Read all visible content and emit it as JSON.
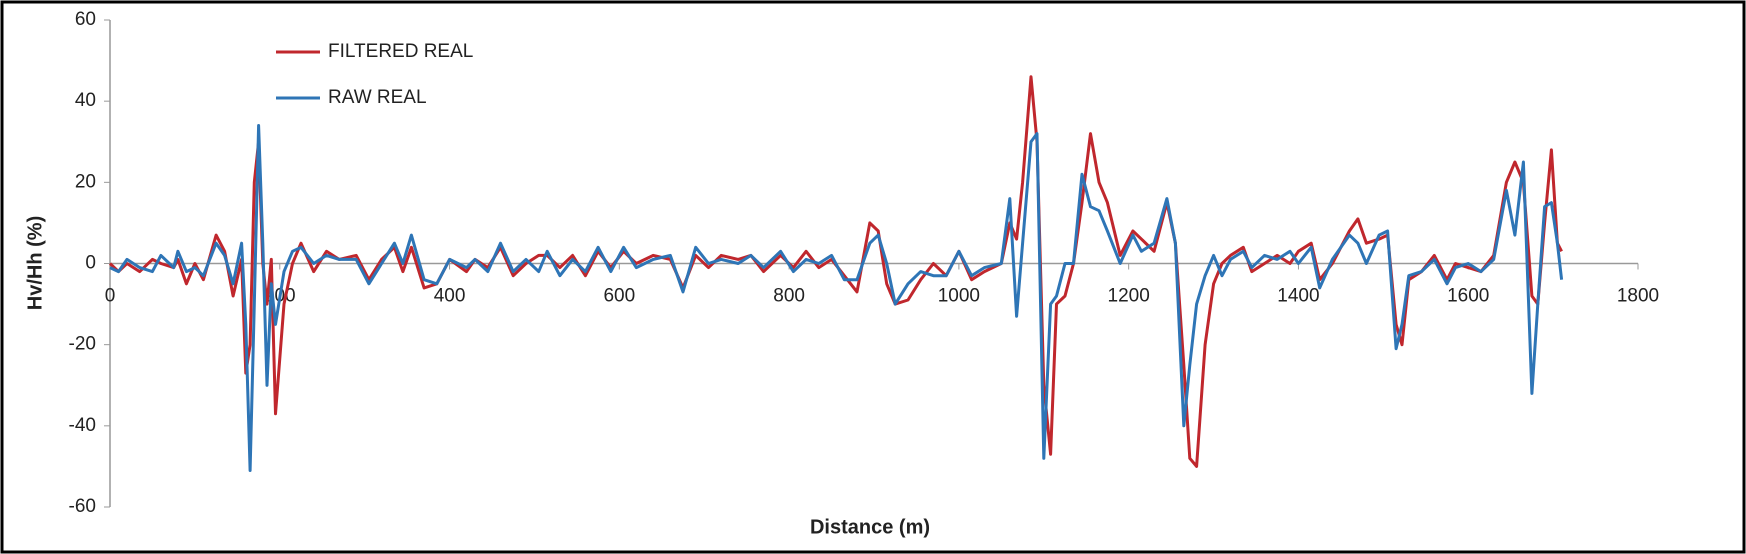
{
  "chart_data": {
    "type": "line",
    "xlabel": "Distance (m)",
    "ylabel": "Hv/Hh (%)",
    "x": [
      0,
      10,
      20,
      35,
      50,
      60,
      75,
      80,
      90,
      100,
      110,
      125,
      135,
      145,
      155,
      160,
      165,
      170,
      175,
      180,
      185,
      190,
      195,
      205,
      215,
      225,
      240,
      255,
      270,
      290,
      305,
      320,
      335,
      345,
      355,
      370,
      385,
      400,
      420,
      430,
      445,
      460,
      475,
      490,
      505,
      515,
      530,
      545,
      560,
      575,
      590,
      605,
      620,
      640,
      660,
      675,
      690,
      705,
      720,
      740,
      755,
      770,
      790,
      805,
      820,
      835,
      850,
      865,
      880,
      895,
      905,
      915,
      925,
      940,
      955,
      970,
      985,
      1000,
      1015,
      1030,
      1050,
      1060,
      1068,
      1075,
      1085,
      1092,
      1100,
      1108,
      1115,
      1125,
      1135,
      1145,
      1155,
      1165,
      1175,
      1190,
      1205,
      1215,
      1230,
      1245,
      1255,
      1265,
      1272,
      1280,
      1290,
      1300,
      1310,
      1320,
      1335,
      1345,
      1360,
      1375,
      1390,
      1400,
      1415,
      1425,
      1440,
      1460,
      1470,
      1480,
      1495,
      1505,
      1515,
      1522,
      1530,
      1545,
      1560,
      1575,
      1585,
      1600,
      1615,
      1630,
      1645,
      1655,
      1665,
      1675,
      1682,
      1690,
      1698,
      1705,
      1710
    ],
    "series": [
      {
        "name": "FILTERED REAL",
        "color": "#c0272d",
        "values": [
          0,
          -2,
          0,
          -2,
          1,
          0,
          -1,
          1,
          -5,
          0,
          -4,
          7,
          3,
          -8,
          1,
          -27,
          -20,
          20,
          30,
          0,
          -10,
          1,
          -37,
          -10,
          0,
          5,
          -2,
          3,
          1,
          2,
          -4,
          1,
          4,
          -2,
          4,
          -6,
          -5,
          1,
          -2,
          1,
          -1,
          4,
          -3,
          0,
          2,
          2,
          -1,
          2,
          -3,
          3,
          -1,
          3,
          0,
          2,
          1,
          -6,
          2,
          -1,
          2,
          1,
          2,
          -2,
          2,
          -1,
          3,
          -1,
          1,
          -3,
          -7,
          10,
          8,
          -5,
          -10,
          -9,
          -4,
          0,
          -3,
          3,
          -4,
          -2,
          0,
          10,
          6,
          20,
          46,
          30,
          -30,
          -47,
          -10,
          -8,
          0,
          15,
          32,
          20,
          15,
          2,
          8,
          6,
          3,
          15,
          5,
          -25,
          -48,
          -50,
          -20,
          -5,
          0,
          2,
          4,
          -2,
          0,
          2,
          0,
          3,
          5,
          -4,
          0,
          8,
          11,
          5,
          6,
          7,
          -15,
          -20,
          -4,
          -2,
          2,
          -4,
          0,
          -1,
          -2,
          2,
          20,
          25,
          20,
          -8,
          -10,
          10,
          28,
          5,
          3
        ]
      },
      {
        "name": "RAW REAL",
        "color": "#2e75b6",
        "values": [
          -1,
          -2,
          1,
          -1,
          -2,
          2,
          -1,
          3,
          -2,
          -1,
          -3,
          5,
          2,
          -5,
          5,
          -15,
          -51,
          -10,
          34,
          5,
          -30,
          -5,
          -15,
          -2,
          3,
          4,
          0,
          2,
          1,
          1,
          -5,
          0,
          5,
          0,
          7,
          -4,
          -5,
          1,
          -1,
          1,
          -2,
          5,
          -2,
          1,
          -2,
          3,
          -3,
          1,
          -2,
          4,
          -2,
          4,
          -1,
          1,
          2,
          -7,
          4,
          0,
          1,
          0,
          2,
          -1,
          3,
          -2,
          1,
          0,
          2,
          -4,
          -4,
          5,
          7,
          0,
          -10,
          -5,
          -2,
          -3,
          -3,
          3,
          -3,
          -1,
          0,
          16,
          -13,
          5,
          30,
          32,
          -48,
          -10,
          -8,
          0,
          0,
          22,
          14,
          13,
          8,
          0,
          7,
          3,
          5,
          16,
          5,
          -40,
          -25,
          -10,
          -3,
          2,
          -3,
          1,
          3,
          -1,
          2,
          1,
          3,
          0,
          4,
          -6,
          1,
          7,
          5,
          0,
          7,
          8,
          -21,
          -15,
          -3,
          -2,
          1,
          -5,
          -1,
          0,
          -2,
          1,
          18,
          7,
          25,
          -32,
          -10,
          14,
          15,
          5,
          -4
        ]
      }
    ],
    "xlim": [
      0,
      1800
    ],
    "xticks": [
      0,
      200,
      400,
      600,
      800,
      1000,
      1200,
      1400,
      1600,
      1800
    ],
    "ylim": [
      -60,
      60
    ],
    "yticks": [
      -60,
      -40,
      -20,
      0,
      20,
      40,
      60
    ],
    "grid": false,
    "legend": "upper left"
  }
}
